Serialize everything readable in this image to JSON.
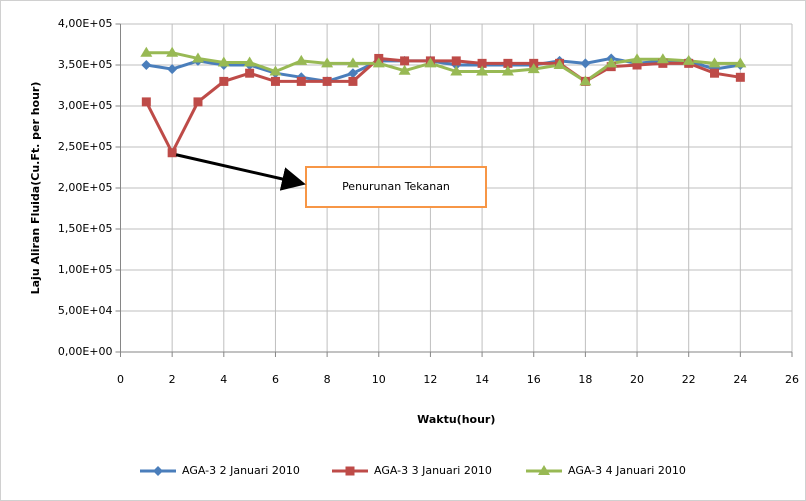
{
  "chart_data": {
    "type": "line",
    "x_label": "Waktu(hour)",
    "y_label": "Laju Aliran Fluida(Cu.Ft. per hour)",
    "annotation": "Penurunan Tekanan",
    "x": [
      1,
      2,
      3,
      4,
      5,
      6,
      7,
      8,
      9,
      10,
      11,
      12,
      13,
      14,
      15,
      16,
      17,
      18,
      19,
      20,
      21,
      22,
      23,
      24
    ],
    "series": [
      {
        "name": "AGA-3 2 Januari 2010",
        "color": "#4a7ebb",
        "marker": "diamond",
        "values": [
          350000,
          345000,
          355000,
          350000,
          350000,
          340000,
          335000,
          330000,
          340000,
          355000,
          355000,
          355000,
          350000,
          350000,
          350000,
          350000,
          355000,
          352000,
          358000,
          352000,
          355000,
          355000,
          345000,
          350000
        ]
      },
      {
        "name": "AGA-3 3 Januari 2010",
        "color": "#be4b48",
        "marker": "square",
        "values": [
          305000,
          243000,
          305000,
          330000,
          340000,
          330000,
          330000,
          330000,
          330000,
          358000,
          355000,
          355000,
          355000,
          352000,
          352000,
          352000,
          352000,
          330000,
          348000,
          350000,
          352000,
          352000,
          340000,
          335000
        ]
      },
      {
        "name": "AGA-3 4 Januari 2010",
        "color": "#98b954",
        "marker": "triangle",
        "values": [
          365000,
          365000,
          358000,
          353000,
          353000,
          342000,
          355000,
          352000,
          352000,
          352000,
          343000,
          352000,
          342000,
          342000,
          342000,
          345000,
          350000,
          330000,
          352000,
          357000,
          357000,
          355000,
          352000,
          352000
        ]
      }
    ],
    "xlim": [
      0,
      26
    ],
    "xticks": [
      0,
      2,
      4,
      6,
      8,
      10,
      12,
      14,
      16,
      18,
      20,
      22,
      24,
      26
    ],
    "ylim": [
      0,
      400000
    ],
    "yticks": [
      {
        "value": 0,
        "label": "0,00E+00"
      },
      {
        "value": 50000,
        "label": "5,00E+04"
      },
      {
        "value": 100000,
        "label": "1,00E+05"
      },
      {
        "value": 150000,
        "label": "1,50E+05"
      },
      {
        "value": 200000,
        "label": "2,00E+05"
      },
      {
        "value": 250000,
        "label": "2,50E+05"
      },
      {
        "value": 300000,
        "label": "3,00E+05"
      },
      {
        "value": 350000,
        "label": "3,50E+05"
      },
      {
        "value": 400000,
        "label": "4,00E+05"
      }
    ],
    "grid": true,
    "legend": "bottom"
  }
}
